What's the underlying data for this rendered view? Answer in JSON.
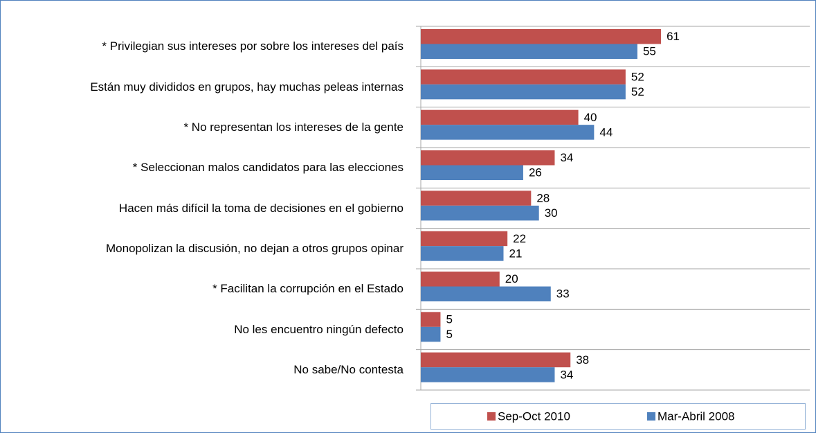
{
  "chart_data": {
    "type": "bar",
    "orientation": "horizontal",
    "categories": [
      "* Privilegian sus intereses por sobre los intereses del país",
      "Están muy divididos en grupos, hay muchas peleas internas",
      "* No representan los intereses de la gente",
      "* Seleccionan malos candidatos para las elecciones",
      "Hacen más difícil la toma de decisiones en el gobierno",
      "Monopolizan la discusión, no dejan a otros grupos opinar",
      "* Facilitan la corrupción en el Estado",
      "No les encuentro ningún defecto",
      "No sabe/No contesta"
    ],
    "series": [
      {
        "name": "Sep-Oct 2010",
        "color": "#c0504d",
        "values": [
          61,
          52,
          40,
          34,
          28,
          22,
          20,
          5,
          38
        ]
      },
      {
        "name": "Mar-Abril 2008",
        "color": "#4f81bd",
        "values": [
          55,
          52,
          44,
          26,
          30,
          21,
          33,
          5,
          34
        ]
      }
    ],
    "xlim": [
      0,
      100
    ],
    "legend": "bottom"
  }
}
